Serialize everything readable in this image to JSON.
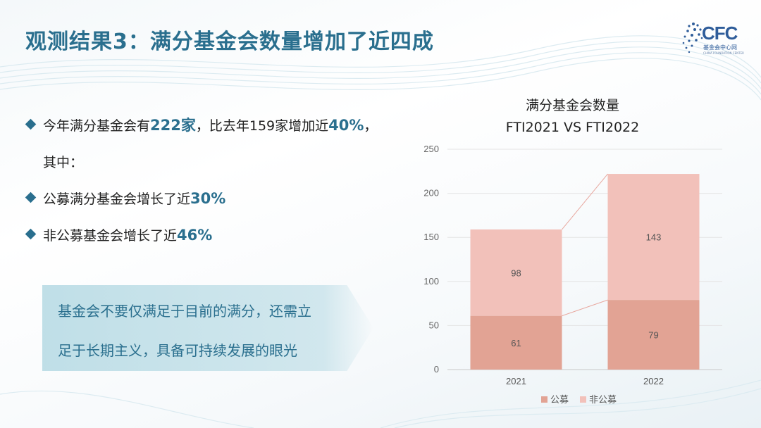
{
  "slide": {
    "title": "观测结果3：满分基金会数量增加了近四成"
  },
  "logo": {
    "text": "CFC",
    "sub": "基金会中心网",
    "sub2": "CHINA FOUNDATION CENTER"
  },
  "bullets": [
    {
      "pre": "今年满分基金会有",
      "hl1": "222家",
      "mid": "，比去年159家增加近",
      "hl2": "40%",
      "post": "，"
    },
    {
      "text": "其中："
    },
    {
      "pre": "公募满分基金会增长了近",
      "hl": "30%"
    },
    {
      "pre": "非公募基金会增长了近",
      "hl": "46%"
    }
  ],
  "quote": {
    "line1": "基金会不要仅满足于目前的满分，还需立",
    "line2": "足于长期主义，具备可持续发展的眼光"
  },
  "chart_data": {
    "type": "bar",
    "stacked": true,
    "title": "满分基金会数量",
    "subtitle": "FTI2021 VS FTI2022",
    "categories": [
      "2021",
      "2022"
    ],
    "series": [
      {
        "name": "公募",
        "values": [
          61,
          79
        ],
        "color": "#e2a394"
      },
      {
        "name": "非公募",
        "values": [
          98,
          143
        ],
        "color": "#f2c1ba"
      }
    ],
    "ylim": [
      0,
      250
    ],
    "yticks": [
      0,
      50,
      100,
      150,
      200,
      250
    ],
    "data_labels": true,
    "grid": true,
    "legend": "bottom",
    "connector_color": "#e8a89f"
  }
}
